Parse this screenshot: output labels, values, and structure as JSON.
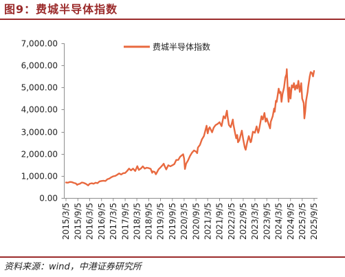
{
  "figure": {
    "source": "资料来源：wind，中港证券研究所"
  },
  "colors": {
    "accent": "#9A2A2A",
    "axis": "#8C8C8C"
  },
  "chart_data": {
    "type": "line",
    "title": "图9：费城半导体指数",
    "grid": false,
    "legend": {
      "position": "top-center"
    },
    "x_axis": {
      "type": "date",
      "range": [
        "2015/3/5",
        "2025/9/5"
      ],
      "tick_labels": [
        "2015/3/5",
        "2015/9/5",
        "2016/3/5",
        "2016/9/5",
        "2017/3/5",
        "2017/9/5",
        "2018/3/5",
        "2018/9/5",
        "2019/3/5",
        "2019/9/5",
        "2020/3/5",
        "2020/9/5",
        "2021/3/5",
        "2021/9/5",
        "2022/3/5",
        "2022/9/5",
        "2023/3/5",
        "2023/9/5",
        "2024/3/5",
        "2024/9/5",
        "2025/3/5",
        "2025/9/5"
      ]
    },
    "y_axis": {
      "range": [
        0,
        7000
      ],
      "ticks": [
        0,
        1000,
        2000,
        3000,
        4000,
        5000,
        6000,
        7000
      ],
      "tick_labels": [
        "0.00",
        "1,000.00",
        "2,000.00",
        "3,000.00",
        "4,000.00",
        "5,000.00",
        "6,000.00",
        "7,000.00"
      ]
    },
    "x": [
      "2015/3/5",
      "2015/4/5",
      "2015/5/5",
      "2015/6/5",
      "2015/7/5",
      "2015/8/5",
      "2015/8/25",
      "2015/9/5",
      "2015/10/5",
      "2015/11/5",
      "2015/12/5",
      "2016/1/5",
      "2016/2/11",
      "2016/3/5",
      "2016/4/5",
      "2016/5/5",
      "2016/6/5",
      "2016/7/5",
      "2016/8/5",
      "2016/9/5",
      "2016/10/5",
      "2016/11/5",
      "2016/12/5",
      "2017/1/5",
      "2017/2/5",
      "2017/3/5",
      "2017/4/5",
      "2017/5/5",
      "2017/6/5",
      "2017/7/5",
      "2017/8/5",
      "2017/9/5",
      "2017/10/5",
      "2017/11/5",
      "2017/12/5",
      "2018/1/5",
      "2018/2/8",
      "2018/3/12",
      "2018/4/5",
      "2018/5/5",
      "2018/6/5",
      "2018/7/5",
      "2018/8/5",
      "2018/9/5",
      "2018/10/5",
      "2018/10/29",
      "2018/11/5",
      "2018/12/5",
      "2018/12/24",
      "2019/1/5",
      "2019/2/5",
      "2019/3/5",
      "2019/4/5",
      "2019/4/24",
      "2019/5/5",
      "2019/6/3",
      "2019/7/5",
      "2019/8/5",
      "2019/9/5",
      "2019/10/5",
      "2019/11/5",
      "2019/12/5",
      "2020/1/5",
      "2020/2/19",
      "2020/3/5",
      "2020/3/18",
      "2020/4/5",
      "2020/5/5",
      "2020/6/5",
      "2020/7/5",
      "2020/8/5",
      "2020/9/5",
      "2020/9/23",
      "2020/10/5",
      "2020/11/5",
      "2020/12/5",
      "2021/1/5",
      "2021/2/16",
      "2021/3/5",
      "2021/3/22",
      "2021/4/5",
      "2021/5/12",
      "2021/6/5",
      "2021/7/5",
      "2021/8/5",
      "2021/9/5",
      "2021/10/5",
      "2021/11/5",
      "2021/11/30",
      "2021/12/27",
      "2022/1/5",
      "2022/1/27",
      "2022/2/24",
      "2022/3/29",
      "2022/4/5",
      "2022/5/5",
      "2022/5/20",
      "2022/6/5",
      "2022/6/16",
      "2022/7/5",
      "2022/8/15",
      "2022/9/5",
      "2022/9/30",
      "2022/10/13",
      "2022/11/5",
      "2022/11/30",
      "2022/12/28",
      "2023/1/5",
      "2023/2/2",
      "2023/3/5",
      "2023/3/31",
      "2023/4/25",
      "2023/5/5",
      "2023/5/31",
      "2023/6/15",
      "2023/7/5",
      "2023/7/31",
      "2023/8/18",
      "2023/9/5",
      "2023/9/26",
      "2023/10/26",
      "2023/11/5",
      "2023/12/5",
      "2023/12/27",
      "2024/1/5",
      "2024/1/24",
      "2024/2/5",
      "2024/3/7",
      "2024/3/20",
      "2024/4/5",
      "2024/4/19",
      "2024/5/5",
      "2024/5/29",
      "2024/6/18",
      "2024/7/5",
      "2024/7/10",
      "2024/7/25",
      "2024/8/7",
      "2024/8/19",
      "2024/9/6",
      "2024/9/26",
      "2024/10/15",
      "2024/10/29",
      "2024/11/15",
      "2024/12/5",
      "2024/12/20",
      "2025/1/6",
      "2025/1/27",
      "2025/2/18",
      "2025/3/5",
      "2025/3/28",
      "2025/4/8",
      "2025/4/21",
      "2025/5/5",
      "2025/5/28",
      "2025/6/5",
      "2025/6/30",
      "2025/7/15",
      "2025/8/5",
      "2025/8/20",
      "2025/9/5"
    ],
    "series": [
      {
        "name": "费城半导体指数",
        "color": "#E8693F",
        "values": [
          700,
          690,
          725,
          715,
          680,
          655,
          590,
          615,
          640,
          700,
          680,
          640,
          570,
          640,
          665,
          645,
          690,
          670,
          750,
          770,
          780,
          770,
          850,
          880,
          940,
          980,
          1000,
          1050,
          1110,
          1060,
          1120,
          1130,
          1220,
          1330,
          1250,
          1330,
          1220,
          1440,
          1270,
          1330,
          1430,
          1330,
          1370,
          1350,
          1320,
          1140,
          1200,
          1180,
          1070,
          1130,
          1300,
          1380,
          1480,
          1550,
          1470,
          1290,
          1480,
          1430,
          1480,
          1530,
          1720,
          1720,
          1870,
          1980,
          1780,
          1310,
          1550,
          1700,
          1900,
          2050,
          2150,
          2100,
          2030,
          2280,
          2400,
          2650,
          2800,
          3270,
          2920,
          3130,
          3200,
          2970,
          3180,
          3300,
          3350,
          3430,
          3250,
          3700,
          3600,
          3950,
          3720,
          3300,
          3200,
          3550,
          3350,
          2900,
          2700,
          2850,
          2520,
          2600,
          3050,
          2650,
          2280,
          2180,
          2500,
          2800,
          2520,
          2550,
          3000,
          2950,
          3240,
          2950,
          3050,
          3450,
          3700,
          3550,
          3850,
          3450,
          3600,
          3400,
          3150,
          3450,
          3700,
          4050,
          3900,
          4400,
          4350,
          4950,
          4750,
          4800,
          4350,
          4700,
          5000,
          5450,
          5600,
          5830,
          4900,
          4350,
          5000,
          4500,
          5100,
          5000,
          5200,
          4900,
          5100,
          4950,
          5300,
          4800,
          5200,
          4500,
          4300,
          3600,
          3900,
          4400,
          4800,
          5000,
          5500,
          5700,
          5650,
          5500,
          5750
        ]
      }
    ]
  }
}
